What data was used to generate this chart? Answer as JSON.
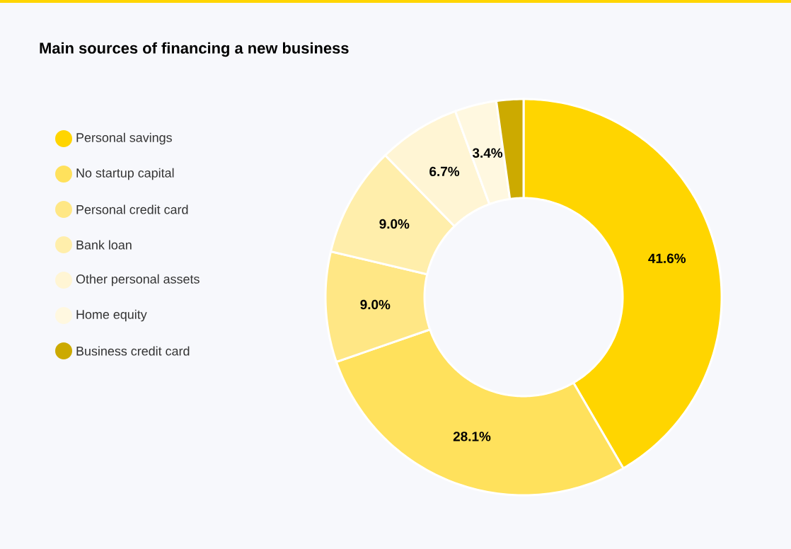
{
  "chart_data": {
    "type": "donut",
    "title": "Main sources of financing a new business",
    "categories": [
      "Personal savings",
      "No startup capital",
      "Personal credit card",
      "Bank loan",
      "Other personal assets",
      "Home equity",
      "Business credit card"
    ],
    "values": [
      41.6,
      28.1,
      9.0,
      9.0,
      6.7,
      3.4,
      2.2
    ],
    "value_labels": [
      "41.6%",
      "28.1%",
      "9.0%",
      "9.0%",
      "6.7%",
      "3.4%",
      null
    ],
    "colors": [
      "#ffd500",
      "#ffe15c",
      "#ffe785",
      "#ffeeab",
      "#fff5d4",
      "#fff8e0",
      "#ccaa00"
    ],
    "legend": "left"
  }
}
